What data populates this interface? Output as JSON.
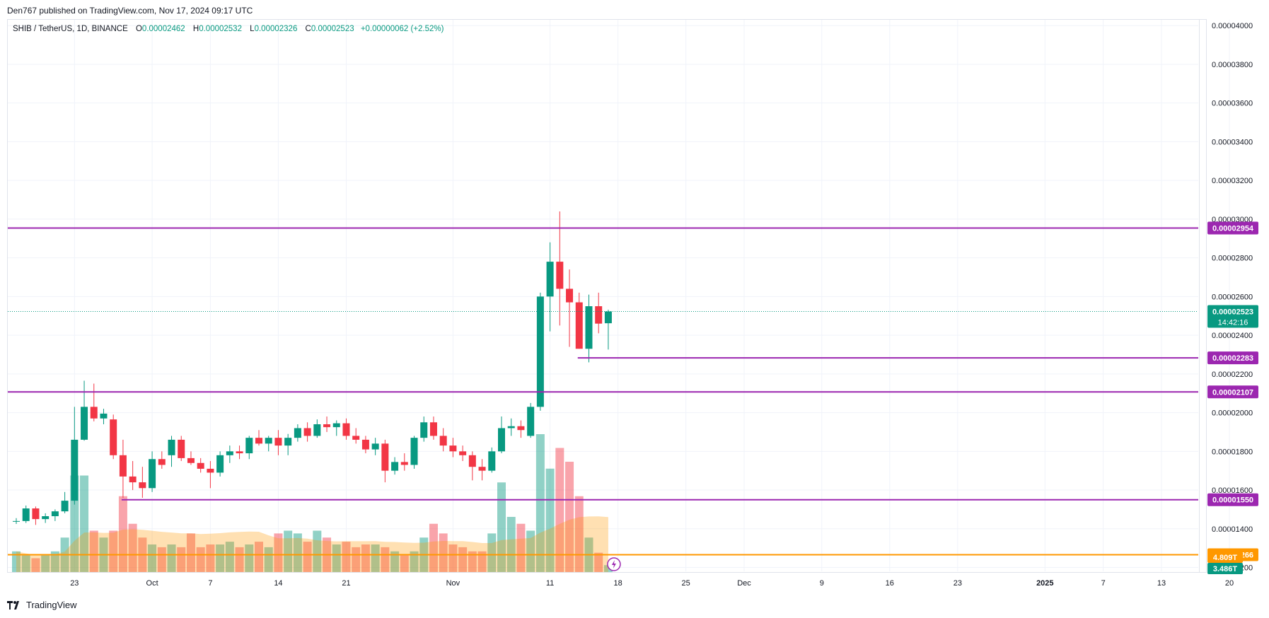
{
  "header": {
    "caption": "Den767 published on TradingView.com, Nov 17, 2024 09:17 UTC"
  },
  "legend": {
    "symbol": "SHIB / TetherUS, 1D, BINANCE",
    "o_label": "O",
    "o_value": "0.00002462",
    "h_label": "H",
    "h_value": "0.00002532",
    "l_label": "L",
    "l_value": "0.00002326",
    "c_label": "C",
    "c_value": "0.00002523",
    "change": "+0.00000062 (+2.52%)"
  },
  "footer": {
    "brand": "TradingView"
  },
  "colors": {
    "up": "#089981",
    "down": "#f23645",
    "level_line": "#9c27b0",
    "orange_line": "#ff9800",
    "grid": "#f0f3fa"
  },
  "chart_data": {
    "type": "candlestick",
    "y_axis": {
      "ticks": [
        "0.00004000",
        "0.00003800",
        "0.00003600",
        "0.00003400",
        "0.00003200",
        "0.00003000",
        "0.00002800",
        "0.00002600",
        "0.00002400",
        "0.00002200",
        "0.00002000",
        "0.00001800",
        "0.00001600",
        "0.00001400",
        "0.00001200"
      ]
    },
    "x_axis": {
      "ticks": [
        {
          "label": "23",
          "date": "2024-09-23"
        },
        {
          "label": "Oct",
          "date": "2024-10-01"
        },
        {
          "label": "7",
          "date": "2024-10-07"
        },
        {
          "label": "14",
          "date": "2024-10-14"
        },
        {
          "label": "21",
          "date": "2024-10-21"
        },
        {
          "label": "Nov",
          "date": "2024-11-01"
        },
        {
          "label": "11",
          "date": "2024-11-11"
        },
        {
          "label": "18",
          "date": "2024-11-18"
        },
        {
          "label": "25",
          "date": "2024-11-25"
        },
        {
          "label": "Dec",
          "date": "2024-12-01"
        },
        {
          "label": "9",
          "date": "2024-12-09"
        },
        {
          "label": "16",
          "date": "2024-12-16"
        },
        {
          "label": "23",
          "date": "2024-12-23"
        },
        {
          "label": "2025",
          "date": "2025-01-01"
        },
        {
          "label": "7",
          "date": "2025-01-07"
        },
        {
          "label": "13",
          "date": "2025-01-13"
        },
        {
          "label": "20",
          "date": "2025-01-20"
        }
      ]
    },
    "candles": [
      {
        "date": "2024-09-17",
        "o": 1.44e-05,
        "h": 1.455e-05,
        "l": 1.425e-05,
        "c": 1.44e-05
      },
      {
        "date": "2024-09-18",
        "o": 1.44e-05,
        "h": 1.52e-05,
        "l": 1.43e-05,
        "c": 1.505e-05
      },
      {
        "date": "2024-09-19",
        "o": 1.505e-05,
        "h": 1.515e-05,
        "l": 1.42e-05,
        "c": 1.45e-05
      },
      {
        "date": "2024-09-20",
        "o": 1.45e-05,
        "h": 1.48e-05,
        "l": 1.43e-05,
        "c": 1.465e-05
      },
      {
        "date": "2024-09-21",
        "o": 1.465e-05,
        "h": 1.5e-05,
        "l": 1.44e-05,
        "c": 1.49e-05
      },
      {
        "date": "2024-09-22",
        "o": 1.49e-05,
        "h": 1.59e-05,
        "l": 1.48e-05,
        "c": 1.545e-05
      },
      {
        "date": "2024-09-23",
        "o": 1.545e-05,
        "h": 2.03e-05,
        "l": 1.525e-05,
        "c": 1.86e-05
      },
      {
        "date": "2024-09-24",
        "o": 1.86e-05,
        "h": 2.165e-05,
        "l": 1.855e-05,
        "c": 2.03e-05
      },
      {
        "date": "2024-09-25",
        "o": 2.03e-05,
        "h": 2.15e-05,
        "l": 1.955e-05,
        "c": 1.97e-05
      },
      {
        "date": "2024-09-26",
        "o": 1.97e-05,
        "h": 2.02e-05,
        "l": 1.94e-05,
        "c": 1.995e-05
      },
      {
        "date": "2024-09-27",
        "o": 1.965e-05,
        "h": 1.99e-05,
        "l": 1.76e-05,
        "c": 1.78e-05
      },
      {
        "date": "2024-09-28",
        "o": 1.78e-05,
        "h": 1.86e-05,
        "l": 1.56e-05,
        "c": 1.67e-05
      },
      {
        "date": "2024-09-29",
        "o": 1.67e-05,
        "h": 1.75e-05,
        "l": 1.6e-05,
        "c": 1.64e-05
      },
      {
        "date": "2024-09-30",
        "o": 1.64e-05,
        "h": 1.72e-05,
        "l": 1.56e-05,
        "c": 1.61e-05
      },
      {
        "date": "2024-10-01",
        "o": 1.61e-05,
        "h": 1.8e-05,
        "l": 1.59e-05,
        "c": 1.76e-05
      },
      {
        "date": "2024-10-02",
        "o": 1.76e-05,
        "h": 1.8e-05,
        "l": 1.71e-05,
        "c": 1.73e-05
      },
      {
        "date": "2024-10-03",
        "o": 1.78e-05,
        "h": 1.88e-05,
        "l": 1.72e-05,
        "c": 1.86e-05
      },
      {
        "date": "2024-10-04",
        "o": 1.86e-05,
        "h": 1.88e-05,
        "l": 1.75e-05,
        "c": 1.765e-05
      },
      {
        "date": "2024-10-05",
        "o": 1.765e-05,
        "h": 1.8e-05,
        "l": 1.73e-05,
        "c": 1.74e-05
      },
      {
        "date": "2024-10-06",
        "o": 1.74e-05,
        "h": 1.765e-05,
        "l": 1.69e-05,
        "c": 1.71e-05
      },
      {
        "date": "2024-10-07",
        "o": 1.71e-05,
        "h": 1.75e-05,
        "l": 1.61e-05,
        "c": 1.69e-05
      },
      {
        "date": "2024-10-08",
        "o": 1.69e-05,
        "h": 1.8e-05,
        "l": 1.67e-05,
        "c": 1.78e-05
      },
      {
        "date": "2024-10-09",
        "o": 1.78e-05,
        "h": 1.83e-05,
        "l": 1.74e-05,
        "c": 1.8e-05
      },
      {
        "date": "2024-10-10",
        "o": 1.8e-05,
        "h": 1.83e-05,
        "l": 1.76e-05,
        "c": 1.79e-05
      },
      {
        "date": "2024-10-11",
        "o": 1.79e-05,
        "h": 1.88e-05,
        "l": 1.76e-05,
        "c": 1.87e-05
      },
      {
        "date": "2024-10-12",
        "o": 1.87e-05,
        "h": 1.91e-05,
        "l": 1.83e-05,
        "c": 1.84e-05
      },
      {
        "date": "2024-10-13",
        "o": 1.84e-05,
        "h": 1.88e-05,
        "l": 1.8e-05,
        "c": 1.87e-05
      },
      {
        "date": "2024-10-14",
        "o": 1.87e-05,
        "h": 1.91e-05,
        "l": 1.78e-05,
        "c": 1.83e-05
      },
      {
        "date": "2024-10-15",
        "o": 1.83e-05,
        "h": 1.89e-05,
        "l": 1.78e-05,
        "c": 1.87e-05
      },
      {
        "date": "2024-10-16",
        "o": 1.87e-05,
        "h": 1.94e-05,
        "l": 1.85e-05,
        "c": 1.92e-05
      },
      {
        "date": "2024-10-17",
        "o": 1.92e-05,
        "h": 1.95e-05,
        "l": 1.85e-05,
        "c": 1.88e-05
      },
      {
        "date": "2024-10-18",
        "o": 1.88e-05,
        "h": 1.965e-05,
        "l": 1.87e-05,
        "c": 1.94e-05
      },
      {
        "date": "2024-10-19",
        "o": 1.94e-05,
        "h": 1.98e-05,
        "l": 1.9e-05,
        "c": 1.925e-05
      },
      {
        "date": "2024-10-20",
        "o": 1.925e-05,
        "h": 1.96e-05,
        "l": 1.88e-05,
        "c": 1.945e-05
      },
      {
        "date": "2024-10-21",
        "o": 1.945e-05,
        "h": 1.97e-05,
        "l": 1.86e-05,
        "c": 1.88e-05
      },
      {
        "date": "2024-10-22",
        "o": 1.88e-05,
        "h": 1.92e-05,
        "l": 1.84e-05,
        "c": 1.86e-05
      },
      {
        "date": "2024-10-23",
        "o": 1.86e-05,
        "h": 1.88e-05,
        "l": 1.79e-05,
        "c": 1.81e-05
      },
      {
        "date": "2024-10-24",
        "o": 1.81e-05,
        "h": 1.87e-05,
        "l": 1.78e-05,
        "c": 1.84e-05
      },
      {
        "date": "2024-10-25",
        "o": 1.84e-05,
        "h": 1.86e-05,
        "l": 1.64e-05,
        "c": 1.7e-05
      },
      {
        "date": "2024-10-26",
        "o": 1.7e-05,
        "h": 1.77e-05,
        "l": 1.68e-05,
        "c": 1.745e-05
      },
      {
        "date": "2024-10-27",
        "o": 1.745e-05,
        "h": 1.79e-05,
        "l": 1.7e-05,
        "c": 1.73e-05
      },
      {
        "date": "2024-10-28",
        "o": 1.73e-05,
        "h": 1.88e-05,
        "l": 1.71e-05,
        "c": 1.87e-05
      },
      {
        "date": "2024-10-29",
        "o": 1.87e-05,
        "h": 1.98e-05,
        "l": 1.85e-05,
        "c": 1.95e-05
      },
      {
        "date": "2024-10-30",
        "o": 1.95e-05,
        "h": 1.98e-05,
        "l": 1.86e-05,
        "c": 1.88e-05
      },
      {
        "date": "2024-10-31",
        "o": 1.88e-05,
        "h": 1.92e-05,
        "l": 1.8e-05,
        "c": 1.83e-05
      },
      {
        "date": "2024-11-01",
        "o": 1.83e-05,
        "h": 1.87e-05,
        "l": 1.77e-05,
        "c": 1.8e-05
      },
      {
        "date": "2024-11-02",
        "o": 1.8e-05,
        "h": 1.83e-05,
        "l": 1.75e-05,
        "c": 1.78e-05
      },
      {
        "date": "2024-11-03",
        "o": 1.78e-05,
        "h": 1.8e-05,
        "l": 1.65e-05,
        "c": 1.72e-05
      },
      {
        "date": "2024-11-04",
        "o": 1.72e-05,
        "h": 1.76e-05,
        "l": 1.65e-05,
        "c": 1.7e-05
      },
      {
        "date": "2024-11-05",
        "o": 1.7e-05,
        "h": 1.82e-05,
        "l": 1.69e-05,
        "c": 1.8e-05
      },
      {
        "date": "2024-11-06",
        "o": 1.8e-05,
        "h": 1.98e-05,
        "l": 1.79e-05,
        "c": 1.92e-05
      },
      {
        "date": "2024-11-07",
        "o": 1.92e-05,
        "h": 1.97e-05,
        "l": 1.88e-05,
        "c": 1.93e-05
      },
      {
        "date": "2024-11-08",
        "o": 1.93e-05,
        "h": 1.96e-05,
        "l": 1.87e-05,
        "c": 1.91e-05
      },
      {
        "date": "2024-11-09",
        "o": 1.88e-05,
        "h": 2.05e-05,
        "l": 1.87e-05,
        "c": 2.03e-05
      },
      {
        "date": "2024-11-10",
        "o": 2.03e-05,
        "h": 2.62e-05,
        "l": 2.01e-05,
        "c": 2.6e-05
      },
      {
        "date": "2024-11-11",
        "o": 2.6e-05,
        "h": 2.88e-05,
        "l": 2.42e-05,
        "c": 2.78e-05
      },
      {
        "date": "2024-11-12",
        "o": 2.78e-05,
        "h": 3.04e-05,
        "l": 2.45e-05,
        "c": 2.64e-05
      },
      {
        "date": "2024-11-13",
        "o": 2.64e-05,
        "h": 2.74e-05,
        "l": 2.34e-05,
        "c": 2.57e-05
      },
      {
        "date": "2024-11-14",
        "o": 2.57e-05,
        "h": 2.62e-05,
        "l": 2.33e-05,
        "c": 2.33e-05
      },
      {
        "date": "2024-11-15",
        "o": 2.33e-05,
        "h": 2.61e-05,
        "l": 2.26e-05,
        "c": 2.55e-05
      },
      {
        "date": "2024-11-16",
        "o": 2.55e-05,
        "h": 2.62e-05,
        "l": 2.41e-05,
        "c": 2.46e-05
      },
      {
        "date": "2024-11-17",
        "o": 2.462e-05,
        "h": 2.532e-05,
        "l": 2.326e-05,
        "c": 2.523e-05
      }
    ],
    "volume_relative": [
      0.15,
      0.12,
      0.1,
      0.12,
      0.15,
      0.25,
      0.7,
      0.7,
      0.3,
      0.25,
      0.3,
      0.55,
      0.35,
      0.25,
      0.2,
      0.18,
      0.2,
      0.18,
      0.28,
      0.18,
      0.2,
      0.2,
      0.22,
      0.18,
      0.2,
      0.22,
      0.18,
      0.28,
      0.3,
      0.28,
      0.22,
      0.3,
      0.25,
      0.2,
      0.22,
      0.18,
      0.2,
      0.2,
      0.18,
      0.15,
      0.12,
      0.15,
      0.25,
      0.35,
      0.28,
      0.2,
      0.18,
      0.15,
      0.15,
      0.28,
      0.65,
      0.4,
      0.35,
      0.3,
      1.0,
      0.75,
      0.9,
      0.8,
      0.55,
      0.25,
      0.14,
      0.05
    ],
    "horizontal_levels": [
      {
        "label": "0.00002954",
        "value": 2.954e-05,
        "color": "#9c27b0",
        "from_date": null
      },
      {
        "label": "0.00002283",
        "value": 2.283e-05,
        "color": "#9c27b0",
        "from_date": "2024-11-14"
      },
      {
        "label": "0.00002107",
        "value": 2.107e-05,
        "color": "#9c27b0",
        "from_date": null
      },
      {
        "label": "0.00001550",
        "value": 1.55e-05,
        "color": "#9c27b0",
        "from_date": "2024-09-28"
      },
      {
        "label": "0.00001266",
        "value": 1.266e-05,
        "color": "#ff9800",
        "from_date": null
      }
    ],
    "last_price": {
      "label": "0.00002523",
      "value": 2.523e-05,
      "countdown": "14:42:16"
    },
    "volume_labels": [
      {
        "label": "4.809T",
        "color": "#ff9800"
      },
      {
        "label": "3.486T",
        "color": "#089981"
      }
    ],
    "y_range": [
      1.18e-05,
      4.03e-05
    ]
  }
}
